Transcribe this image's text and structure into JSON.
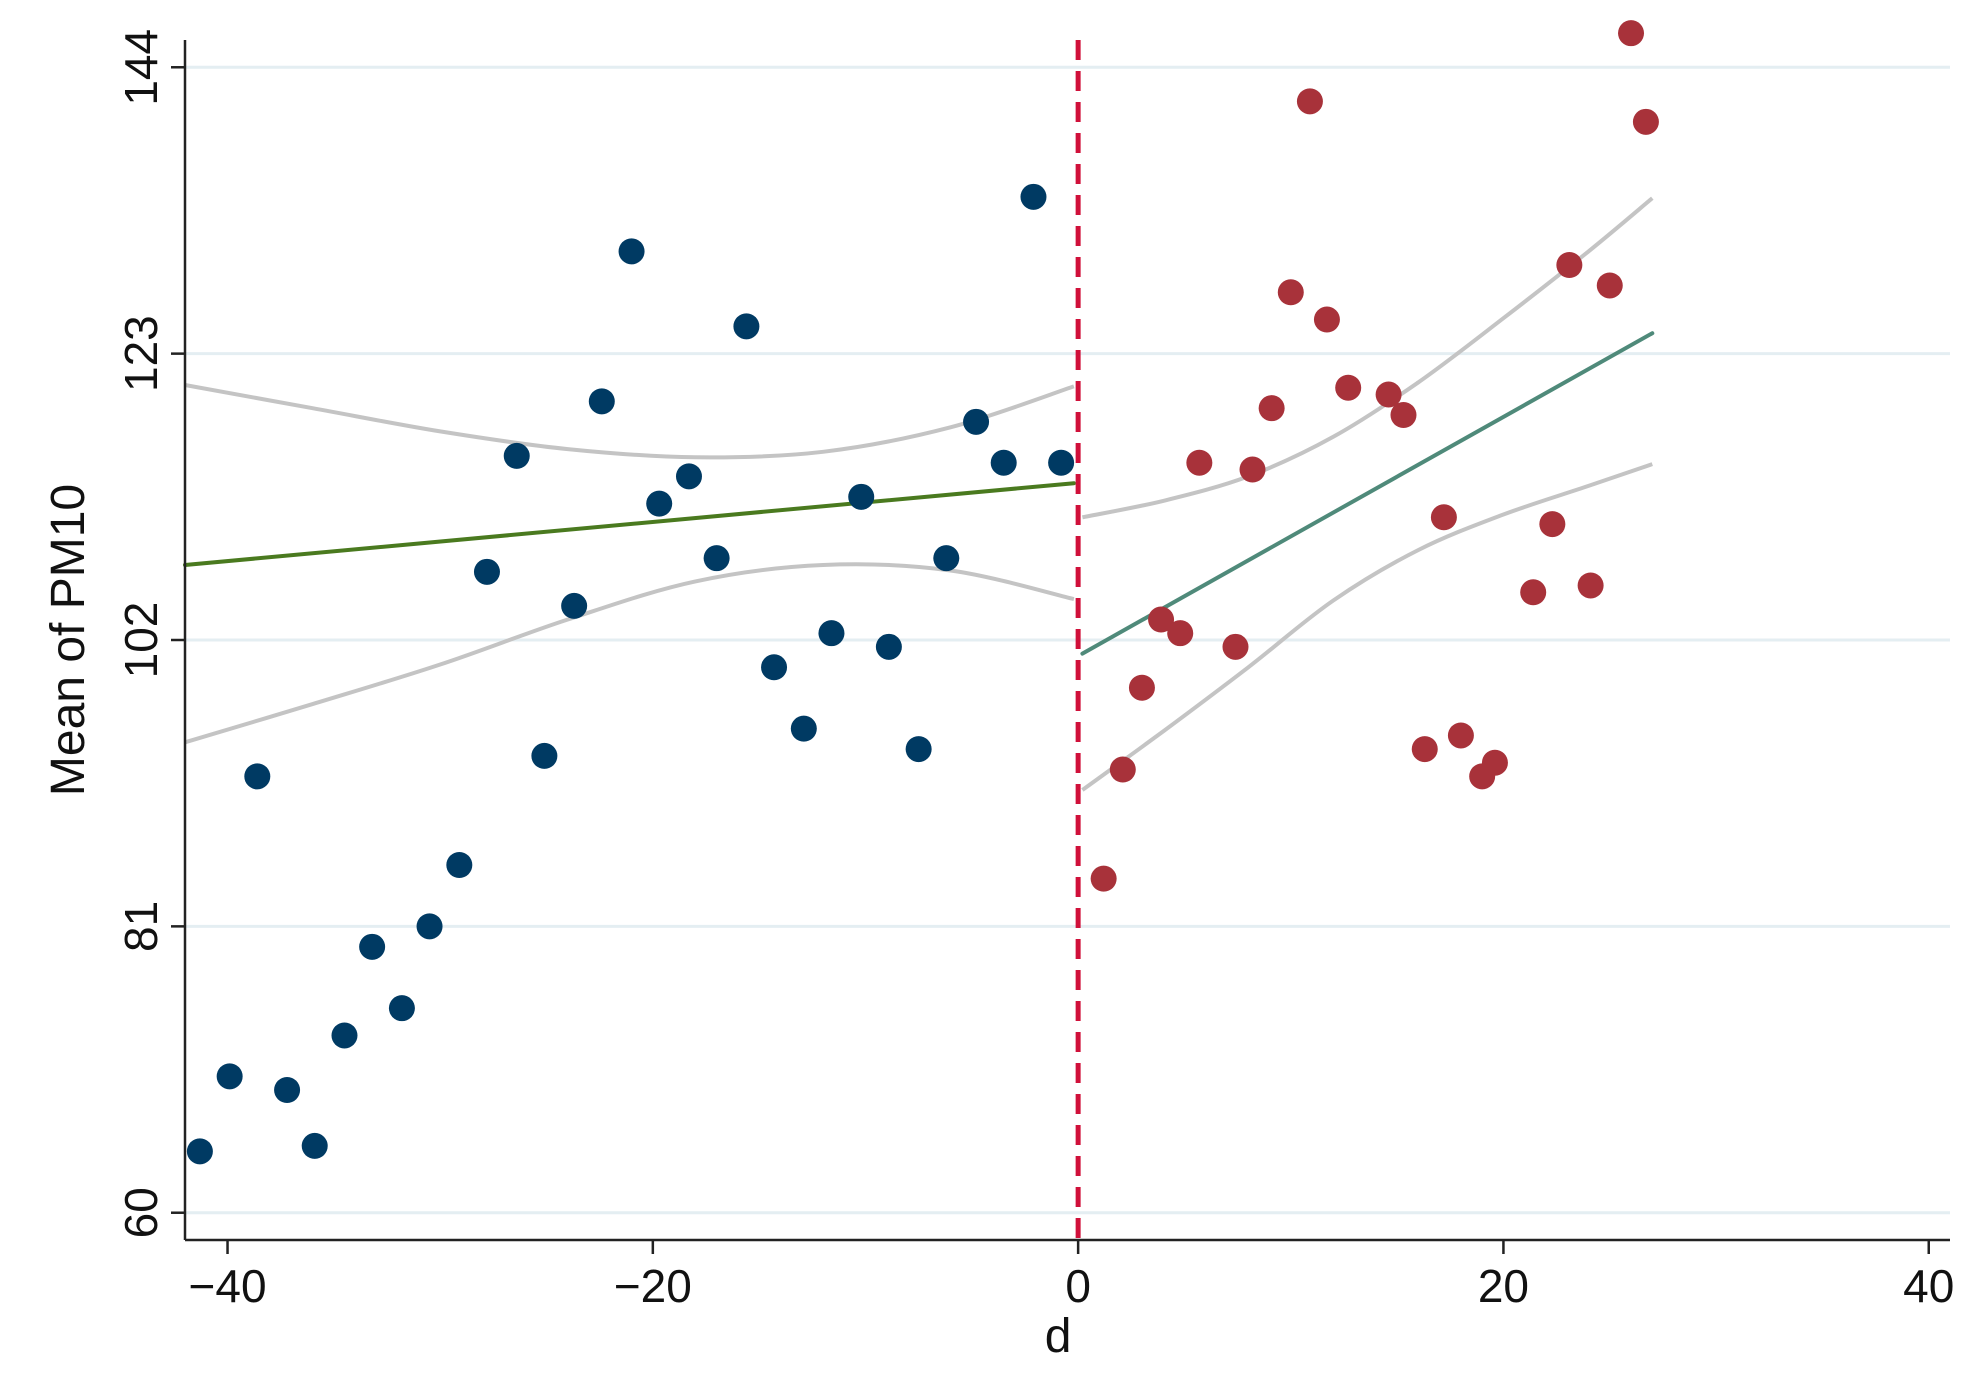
{
  "chart_data": {
    "type": "scatter",
    "title": "",
    "xlabel": "d",
    "ylabel": "Mean of PM10",
    "xlim": [
      -42,
      41
    ],
    "ylim": [
      58,
      146
    ],
    "x_ticks": [
      {
        "value": -40,
        "label": "−40"
      },
      {
        "value": -20,
        "label": "−20"
      },
      {
        "value": 0,
        "label": "0"
      },
      {
        "value": 20,
        "label": "20"
      },
      {
        "value": 40,
        "label": "40"
      }
    ],
    "y_ticks": [
      {
        "value": 60,
        "label": "60"
      },
      {
        "value": 81,
        "label": "81"
      },
      {
        "value": 102,
        "label": "102"
      },
      {
        "value": 123,
        "label": "123"
      },
      {
        "value": 144,
        "label": "144"
      }
    ],
    "grid": "horizontal",
    "cutoff": 0,
    "colors": {
      "left_points": "#003a63",
      "right_points": "#a8323a",
      "left_fit": "#4a7a1f",
      "right_fit": "#4f8a7a",
      "ci": "#c4c4c4",
      "cutoff": "#d0103a",
      "grid": "#e4eef2"
    },
    "series": [
      {
        "role": "points-left",
        "x": [
          -41.3,
          -39.9,
          -38.6,
          -37.2,
          -35.9,
          -34.5,
          -33.2,
          -31.8,
          -30.5,
          -29.1,
          -27.8,
          -26.4,
          -25.1,
          -23.7,
          -22.4,
          -21.0,
          -19.7,
          -18.3,
          -17.0,
          -15.6,
          -14.3,
          -12.9,
          -11.6,
          -10.2,
          -8.9,
          -7.5,
          -6.2,
          -4.8,
          -3.5,
          -2.1,
          -0.8
        ],
        "y": [
          64.5,
          70.0,
          92.0,
          69.0,
          64.9,
          73.0,
          79.5,
          75.0,
          81.0,
          85.5,
          107.0,
          115.5,
          93.5,
          104.5,
          119.5,
          130.5,
          112.0,
          114.0,
          108.0,
          125.0,
          100.0,
          95.5,
          102.5,
          112.5,
          101.5,
          94.0,
          108.0,
          118.0,
          115.0,
          134.5,
          115.0
        ]
      },
      {
        "role": "points-right",
        "x": [
          1.2,
          2.1,
          3.0,
          3.9,
          4.8,
          5.7,
          7.4,
          8.2,
          9.1,
          10.0,
          10.9,
          11.7,
          12.7,
          14.6,
          15.3,
          16.3,
          17.2,
          18.0,
          19.0,
          19.6,
          21.4,
          22.3,
          23.1,
          24.1,
          25.0,
          26.0,
          26.7
        ],
        "y": [
          84.5,
          92.5,
          98.5,
          103.5,
          102.5,
          115.0,
          101.5,
          114.5,
          119.0,
          127.5,
          141.5,
          125.5,
          120.5,
          120.0,
          118.5,
          94.0,
          111.0,
          95.0,
          92.0,
          93.0,
          105.5,
          110.5,
          129.5,
          106.0,
          128.0,
          146.5,
          140.0
        ]
      },
      {
        "role": "fit-left",
        "x": [
          -42,
          -0.2
        ],
        "y": [
          107.5,
          113.5
        ]
      },
      {
        "role": "fit-right",
        "x": [
          0.2,
          27
        ],
        "y": [
          101.0,
          124.5
        ]
      },
      {
        "role": "ci-left-upper",
        "x": [
          -42,
          -36,
          -30,
          -24,
          -18,
          -12,
          -6,
          -0.2
        ],
        "y": [
          120.7,
          119.0,
          117.3,
          116.0,
          115.4,
          115.8,
          117.6,
          120.6
        ]
      },
      {
        "role": "ci-left-lower",
        "x": [
          -42,
          -36,
          -30,
          -24,
          -18,
          -12,
          -6,
          -0.2
        ],
        "y": [
          94.5,
          97.3,
          100.2,
          103.5,
          106.3,
          107.5,
          107.1,
          105.0
        ]
      },
      {
        "role": "ci-right-upper",
        "x": [
          0.2,
          4,
          8,
          12,
          16,
          20,
          24,
          27
        ],
        "y": [
          111.0,
          112.2,
          114.0,
          116.9,
          120.9,
          125.6,
          130.5,
          134.4
        ]
      },
      {
        "role": "ci-right-lower",
        "x": [
          0.2,
          4,
          8,
          12,
          16,
          20,
          24,
          27
        ],
        "y": [
          91.0,
          95.3,
          100.0,
          104.9,
          108.6,
          111.2,
          113.3,
          114.9
        ]
      }
    ]
  }
}
